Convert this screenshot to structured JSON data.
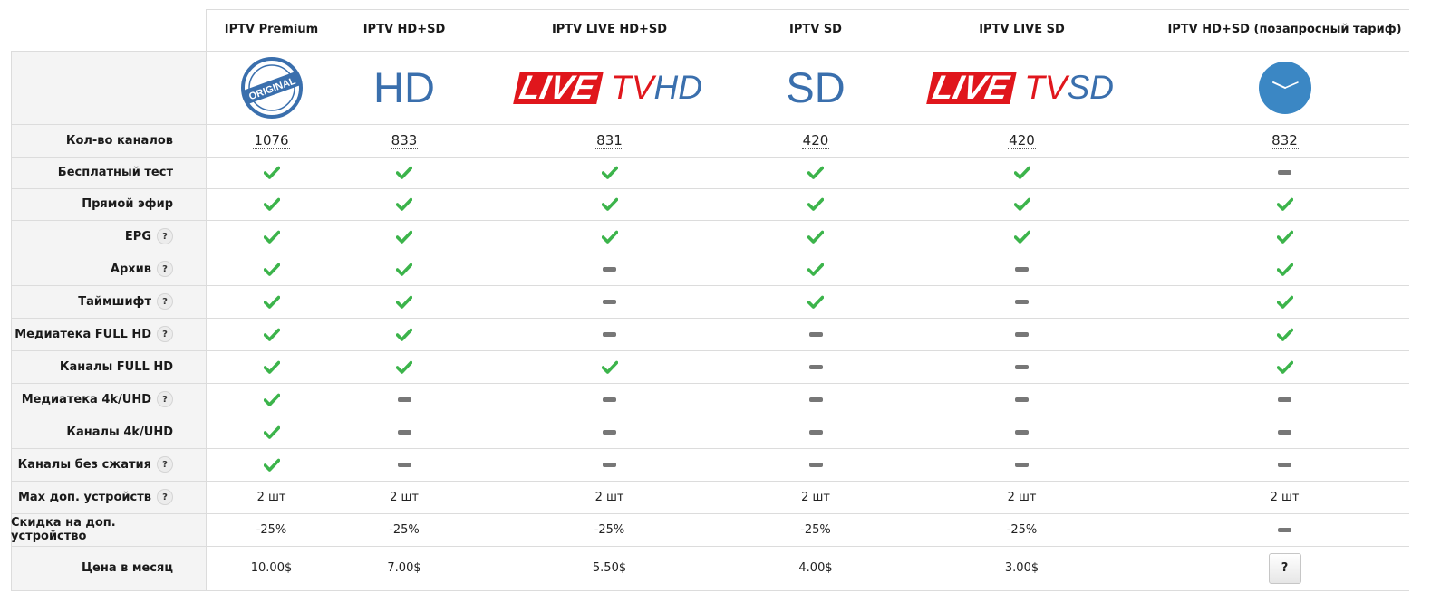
{
  "plans": [
    {
      "name": "IPTV Premium",
      "logo": "original-stamp",
      "channels": "1076",
      "features": [
        "check",
        "check",
        "check",
        "check",
        "check",
        "check",
        "check",
        "check",
        "check",
        "check"
      ],
      "max_devices": "2 шт",
      "discount": "-25%",
      "price": "10.00$"
    },
    {
      "name": "IPTV HD+SD",
      "logo": "hd-text",
      "channels": "833",
      "features": [
        "check",
        "check",
        "check",
        "check",
        "check",
        "check",
        "check",
        "dash",
        "dash",
        "dash"
      ],
      "max_devices": "2 шт",
      "discount": "-25%",
      "price": "7.00$"
    },
    {
      "name": "IPTV LIVE HD+SD",
      "logo": "live-tv-hd",
      "channels": "831",
      "features": [
        "check",
        "check",
        "check",
        "dash",
        "dash",
        "dash",
        "check",
        "dash",
        "dash",
        "dash"
      ],
      "max_devices": "2 шт",
      "discount": "-25%",
      "price": "5.50$"
    },
    {
      "name": "IPTV SD",
      "logo": "sd-text",
      "channels": "420",
      "features": [
        "check",
        "check",
        "check",
        "check",
        "check",
        "dash",
        "dash",
        "dash",
        "dash",
        "dash"
      ],
      "max_devices": "2 шт",
      "discount": "-25%",
      "price": "4.00$"
    },
    {
      "name": "IPTV LIVE SD",
      "logo": "live-tv-sd",
      "channels": "420",
      "features": [
        "check",
        "check",
        "check",
        "dash",
        "dash",
        "dash",
        "dash",
        "dash",
        "dash",
        "dash"
      ],
      "max_devices": "2 шт",
      "discount": "-25%",
      "price": "3.00$"
    },
    {
      "name": "IPTV HD+SD (позапросный тариф)",
      "logo": "clock-icon",
      "channels": "832",
      "features": [
        "dash",
        "check",
        "check",
        "check",
        "check",
        "check",
        "check",
        "dash",
        "dash",
        "dash"
      ],
      "max_devices": "2 шт",
      "discount": "dash",
      "price": "?",
      "price_is_button": true
    }
  ],
  "logos": {
    "stamp_text": "ORIGINAL",
    "hd_text": "HD",
    "sd_text": "SD",
    "live_text": "LIVE",
    "tv_text": "TV",
    "live_hd_suffix": "HD",
    "live_sd_suffix": "SD"
  },
  "rows": {
    "channels_label": "Кол-во каналов",
    "feature_labels": [
      {
        "label": "Бесплатный тест",
        "help": false,
        "link": true
      },
      {
        "label": "Прямой эфир",
        "help": false,
        "link": false
      },
      {
        "label": "EPG",
        "help": true,
        "link": false
      },
      {
        "label": "Архив",
        "help": true,
        "link": false
      },
      {
        "label": "Таймшифт",
        "help": true,
        "link": false
      },
      {
        "label": "Медиатека FULL HD",
        "help": true,
        "link": false
      },
      {
        "label": "Каналы FULL HD",
        "help": false,
        "link": false
      },
      {
        "label": "Медиатека 4k/UHD",
        "help": true,
        "link": false
      },
      {
        "label": "Каналы 4k/UHD",
        "help": false,
        "link": false
      },
      {
        "label": "Каналы без сжатия",
        "help": true,
        "link": false
      }
    ],
    "max_devices_label": "Max доп. устройств",
    "discount_label": "Скидка на доп. устройство",
    "price_label": "Цена в месяц",
    "help_glyph": "?"
  },
  "colors": {
    "check": "#3cb44b",
    "dash": "#777777",
    "logo_blue": "#3a6fad",
    "live_red": "#e0161c",
    "clock_blue": "#3b87c4",
    "label_bg": "#f4f4f4",
    "border": "#dcdcdc"
  }
}
